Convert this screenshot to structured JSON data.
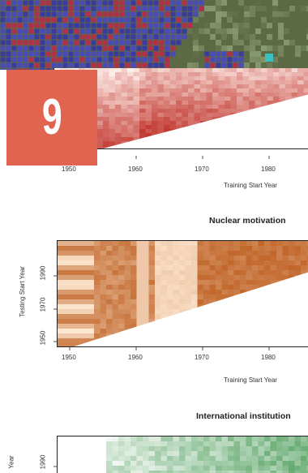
{
  "badge": {
    "number": "9"
  },
  "panels": [
    {
      "id": "top",
      "title": "",
      "xlabel": "Training Start Year",
      "ylabel": "",
      "xticks": [
        "1950",
        "1960",
        "1970",
        "1980"
      ],
      "yticks": [],
      "palette": "red"
    },
    {
      "id": "nuclear",
      "title": "Nuclear motivation",
      "xlabel": "Training Start Year",
      "ylabel": "Testing Start Year",
      "xticks": [
        "1950",
        "1960",
        "1970",
        "1980"
      ],
      "yticks": [
        "1950",
        "1970",
        "1990"
      ],
      "palette": "orange"
    },
    {
      "id": "institutions",
      "title": "International institution",
      "xlabel": "",
      "ylabel": "Year",
      "xticks": [],
      "yticks": [
        "1990"
      ],
      "palette": "green"
    }
  ],
  "colors": {
    "badge": "#e06450",
    "red": "#c0281c",
    "orange": "#c85a10",
    "green": "#2e8a3e",
    "map_cells": "#3a3aa0"
  }
}
